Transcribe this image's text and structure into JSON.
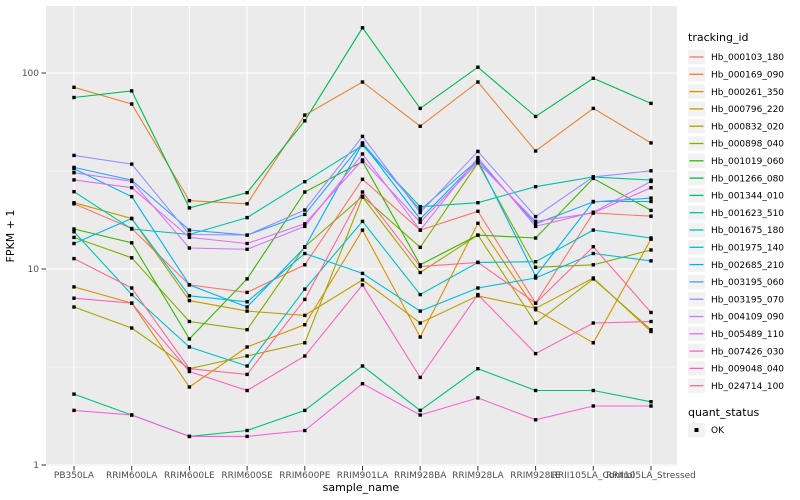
{
  "figure": {
    "background": "#FFFFFF",
    "panel_background": "#EBEBEB",
    "grid_color": "#FFFFFF",
    "tick_mark_color": "#333333",
    "tick_label_color": "#4D4D4D",
    "axis_title_color": "#000000",
    "legend_key_fill": "#F2F2F2",
    "point_color": "#000000"
  },
  "chart_data": {
    "type": "line",
    "title": "",
    "xlabel": "sample_name",
    "ylabel": "FPKM + 1",
    "y_scale": "log10",
    "y_tick_labels": [
      "1",
      "10",
      "100"
    ],
    "y_tick_values": [
      1,
      10,
      100
    ],
    "y_minor_values": [
      3.162,
      31.62
    ],
    "ylim": [
      1,
      200
    ],
    "grid": true,
    "legend_position": "right",
    "point_shape": "filled-black-square",
    "categories": [
      "PB350LA",
      "RRIM600LA",
      "RRIM600LE",
      "RRIM600SE",
      "RRIM600PE",
      "RRIM901LA",
      "RRIM928BA",
      "RRIM928LA",
      "RRIM928LE",
      "RRII105LA_Control",
      "RRII105LA_Stressed"
    ],
    "series": [
      {
        "name": "Hb_000103_180",
        "color": "#F8766D",
        "values": [
          21.5,
          16.1,
          8.3,
          7.6,
          10.5,
          28.7,
          15.8,
          19.7,
          6.7,
          19.3,
          18.6
        ]
      },
      {
        "name": "Hb_000169_090",
        "color": "#EA8331",
        "values": [
          84.5,
          69.5,
          22.3,
          21.5,
          61.0,
          90.0,
          53.5,
          90.0,
          40.0,
          66.0,
          44.0
        ]
      },
      {
        "name": "Hb_000261_350",
        "color": "#D89000",
        "values": [
          8.1,
          6.7,
          2.5,
          4.0,
          5.2,
          15.8,
          4.5,
          17.1,
          6.2,
          4.2,
          14.2
        ]
      },
      {
        "name": "Hb_000796_220",
        "color": "#C09B00",
        "values": [
          21.8,
          18.1,
          6.9,
          6.1,
          5.8,
          8.8,
          5.3,
          7.3,
          6.3,
          9.0,
          4.8
        ]
      },
      {
        "name": "Hb_000832_020",
        "color": "#A3A500",
        "values": [
          6.4,
          5.0,
          3.1,
          3.6,
          4.2,
          23.3,
          9.6,
          14.9,
          5.3,
          8.9,
          4.9
        ]
      },
      {
        "name": "Hb_000898_040",
        "color": "#7CAE00",
        "values": [
          14.5,
          11.4,
          5.4,
          4.9,
          13.0,
          23.5,
          12.9,
          34.8,
          10.2,
          10.5,
          12.5
        ]
      },
      {
        "name": "Hb_001019_060",
        "color": "#39B600",
        "values": [
          16.0,
          13.6,
          4.4,
          8.9,
          24.7,
          35.3,
          10.5,
          14.9,
          14.4,
          29.0,
          19.9
        ]
      },
      {
        "name": "Hb_001266_080",
        "color": "#00BB4E",
        "values": [
          75.0,
          81.0,
          20.5,
          24.5,
          57.0,
          170.0,
          66.0,
          107.0,
          60.0,
          94.0,
          70.0
        ]
      },
      {
        "name": "Hb_001344_010",
        "color": "#00BF7D",
        "values": [
          2.3,
          1.8,
          1.4,
          1.5,
          1.9,
          3.2,
          1.9,
          3.1,
          2.4,
          2.4,
          2.1
        ]
      },
      {
        "name": "Hb_001623_510",
        "color": "#00C1A3",
        "values": [
          24.8,
          16.0,
          15.0,
          18.3,
          27.9,
          42.7,
          20.8,
          21.8,
          26.3,
          29.5,
          28.4
        ]
      },
      {
        "name": "Hb_001675_180",
        "color": "#00BFC4",
        "values": [
          15.5,
          7.4,
          4.0,
          3.2,
          7.9,
          17.5,
          7.4,
          10.8,
          10.9,
          15.8,
          14.4
        ]
      },
      {
        "name": "Hb_001975_140",
        "color": "#00BAE0",
        "values": [
          13.5,
          18.1,
          7.3,
          6.8,
          12.0,
          9.5,
          6.1,
          8.0,
          9.0,
          12.0,
          11.0
        ]
      },
      {
        "name": "Hb_002685_210",
        "color": "#00B0F6",
        "values": [
          32.5,
          23.4,
          8.3,
          6.4,
          12.9,
          43.8,
          18.0,
          35.8,
          9.2,
          22.1,
          22.1
        ]
      },
      {
        "name": "Hb_003195_060",
        "color": "#35A2FF",
        "values": [
          33.0,
          28.4,
          15.8,
          14.9,
          19.0,
          44.0,
          20.0,
          36.0,
          17.0,
          22.0,
          23.0
        ]
      },
      {
        "name": "Hb_003195_070",
        "color": "#9590FF",
        "values": [
          38.0,
          34.3,
          15.0,
          14.9,
          20.0,
          47.5,
          19.4,
          39.8,
          18.5,
          29.5,
          31.7
        ]
      },
      {
        "name": "Hb_004109_090",
        "color": "#C77CFF",
        "values": [
          31.0,
          28.0,
          12.8,
          12.6,
          16.5,
          38.6,
          15.8,
          37.0,
          16.5,
          19.5,
          28.0
        ]
      },
      {
        "name": "Hb_005489_110",
        "color": "#E76BF3",
        "values": [
          28.5,
          26.0,
          14.5,
          13.5,
          17.0,
          36.0,
          17.3,
          35.0,
          17.5,
          19.3,
          26.0
        ]
      },
      {
        "name": "Hb_007426_030",
        "color": "#FA62DB",
        "values": [
          1.9,
          1.8,
          1.4,
          1.4,
          1.5,
          2.6,
          1.8,
          2.2,
          1.7,
          2.0,
          2.0
        ]
      },
      {
        "name": "Hb_009048_040",
        "color": "#FF62BC",
        "values": [
          7.1,
          6.7,
          3.0,
          2.4,
          3.6,
          8.3,
          2.8,
          7.4,
          3.7,
          5.3,
          5.4
        ]
      },
      {
        "name": "Hb_024714_100",
        "color": "#FF6A98",
        "values": [
          11.3,
          8.0,
          3.1,
          2.9,
          7.0,
          24.7,
          10.3,
          10.8,
          6.7,
          13.0,
          6.0
        ]
      }
    ],
    "legend": {
      "series_legend_title": "tracking_id",
      "status_legend_title": "quant_status",
      "status_entries": [
        {
          "label": "OK"
        }
      ]
    }
  }
}
